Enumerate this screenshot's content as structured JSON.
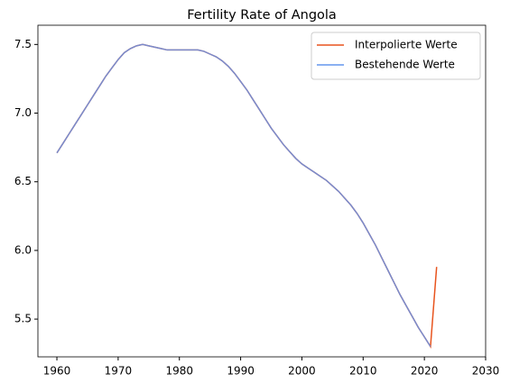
{
  "chart_data": {
    "type": "line",
    "title": "Fertility Rate of Angola",
    "x": [
      1960,
      1961,
      1962,
      1963,
      1964,
      1965,
      1966,
      1967,
      1968,
      1969,
      1970,
      1971,
      1972,
      1973,
      1974,
      1975,
      1976,
      1977,
      1978,
      1979,
      1980,
      1981,
      1982,
      1983,
      1984,
      1985,
      1986,
      1987,
      1988,
      1989,
      1990,
      1991,
      1992,
      1993,
      1994,
      1995,
      1996,
      1997,
      1998,
      1999,
      2000,
      2001,
      2002,
      2003,
      2004,
      2005,
      2006,
      2007,
      2008,
      2009,
      2010,
      2011,
      2012,
      2013,
      2014,
      2015,
      2016,
      2017,
      2018,
      2019,
      2020,
      2021,
      2022
    ],
    "series": [
      {
        "name": "Interpolierte Werte",
        "color": "#e8541e",
        "values": [
          6.71,
          6.78,
          6.85,
          6.92,
          6.99,
          7.06,
          7.13,
          7.2,
          7.27,
          7.33,
          7.39,
          7.44,
          7.47,
          7.49,
          7.5,
          7.49,
          7.48,
          7.47,
          7.46,
          7.46,
          7.46,
          7.46,
          7.46,
          7.46,
          7.45,
          7.43,
          7.41,
          7.38,
          7.34,
          7.29,
          7.23,
          7.17,
          7.1,
          7.03,
          6.96,
          6.89,
          6.83,
          6.77,
          6.72,
          6.67,
          6.63,
          6.6,
          6.57,
          6.54,
          6.51,
          6.47,
          6.43,
          6.38,
          6.33,
          6.27,
          6.2,
          6.12,
          6.04,
          5.95,
          5.86,
          5.77,
          5.68,
          5.6,
          5.52,
          5.44,
          5.37,
          5.3,
          5.88
        ]
      },
      {
        "name": "Bestehende Werte",
        "color": "#6495ed",
        "values": [
          6.71,
          6.78,
          6.85,
          6.92,
          6.99,
          7.06,
          7.13,
          7.2,
          7.27,
          7.33,
          7.39,
          7.44,
          7.47,
          7.49,
          7.5,
          7.49,
          7.48,
          7.47,
          7.46,
          7.46,
          7.46,
          7.46,
          7.46,
          7.46,
          7.45,
          7.43,
          7.41,
          7.38,
          7.34,
          7.29,
          7.23,
          7.17,
          7.1,
          7.03,
          6.96,
          6.89,
          6.83,
          6.77,
          6.72,
          6.67,
          6.63,
          6.6,
          6.57,
          6.54,
          6.51,
          6.47,
          6.43,
          6.38,
          6.33,
          6.27,
          6.2,
          6.12,
          6.04,
          5.95,
          5.86,
          5.77,
          5.68,
          5.6,
          5.52,
          5.44,
          5.37,
          5.3,
          null
        ]
      }
    ],
    "xlim": [
      1956.9,
      2030
    ],
    "xticks": [
      1960,
      1970,
      1980,
      1990,
      2000,
      2010,
      2020,
      2030
    ],
    "ylim": [
      5.225,
      7.64
    ],
    "yticks": [
      5.5,
      {
        "value": 6,
        "label": "6.0"
      },
      6.5,
      {
        "value": 7,
        "label": "7.0"
      },
      7.5
    ],
    "legend": "upper right"
  }
}
